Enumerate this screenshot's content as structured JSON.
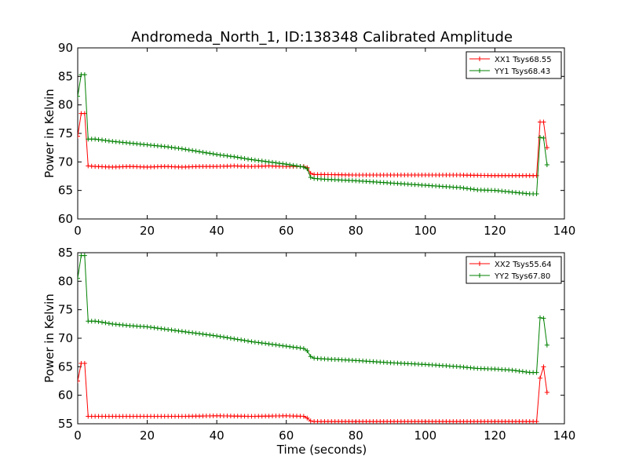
{
  "figure": {
    "title": "Andromeda_North_1, ID:138348 Calibrated Amplitude",
    "xlabel": "Time (seconds)"
  },
  "chart_data": [
    {
      "type": "line",
      "ylabel": "Power in Kelvin",
      "xlim": [
        0,
        140
      ],
      "ylim": [
        60,
        90
      ],
      "xticks": [
        0,
        20,
        40,
        60,
        80,
        100,
        120,
        140
      ],
      "yticks": [
        60,
        65,
        70,
        75,
        80,
        85,
        90
      ],
      "grid": false,
      "legend_position": "top-right",
      "series": [
        {
          "name": "XX1 Tsys68.55",
          "color": "#ff0000",
          "x": [
            0,
            1,
            2,
            3,
            5,
            10,
            15,
            20,
            25,
            30,
            35,
            40,
            45,
            50,
            55,
            60,
            65,
            66,
            67,
            68,
            70,
            80,
            90,
            100,
            110,
            120,
            125,
            130,
            132,
            133,
            134,
            135
          ],
          "y": [
            74.5,
            78.5,
            78.5,
            69.3,
            69.2,
            69.1,
            69.2,
            69.1,
            69.2,
            69.1,
            69.2,
            69.2,
            69.3,
            69.2,
            69.3,
            69.2,
            69.2,
            69.0,
            68.0,
            67.8,
            67.8,
            67.7,
            67.7,
            67.7,
            67.7,
            67.6,
            67.6,
            67.6,
            67.6,
            77.0,
            77.0,
            72.5
          ]
        },
        {
          "name": "YY1 Tsys68.43",
          "color": "#008000",
          "x": [
            0,
            1,
            2,
            3,
            5,
            10,
            15,
            20,
            25,
            30,
            35,
            40,
            45,
            50,
            55,
            60,
            65,
            66,
            67,
            68,
            70,
            80,
            90,
            100,
            110,
            115,
            120,
            125,
            130,
            132,
            133,
            134,
            135
          ],
          "y": [
            81.5,
            85.3,
            85.3,
            74.0,
            74.0,
            73.6,
            73.3,
            73.0,
            72.7,
            72.3,
            71.8,
            71.3,
            70.9,
            70.4,
            70.0,
            69.6,
            69.1,
            68.8,
            67.3,
            67.1,
            67.0,
            66.7,
            66.3,
            65.9,
            65.5,
            65.1,
            65.0,
            64.7,
            64.4,
            64.4,
            74.3,
            74.2,
            69.5
          ]
        }
      ]
    },
    {
      "type": "line",
      "ylabel": "Power in Kelvin",
      "xlim": [
        0,
        140
      ],
      "ylim": [
        55,
        85
      ],
      "xticks": [
        0,
        20,
        40,
        60,
        80,
        100,
        120,
        140
      ],
      "yticks": [
        55,
        60,
        65,
        70,
        75,
        80,
        85
      ],
      "grid": false,
      "legend_position": "top-right",
      "series": [
        {
          "name": "XX2 Tsys55.64",
          "color": "#ff0000",
          "x": [
            0,
            1,
            2,
            3,
            5,
            10,
            20,
            30,
            40,
            50,
            60,
            65,
            66,
            67,
            68,
            70,
            80,
            90,
            100,
            110,
            120,
            130,
            132,
            133,
            134,
            135
          ],
          "y": [
            62.5,
            65.6,
            65.6,
            56.3,
            56.3,
            56.3,
            56.3,
            56.3,
            56.4,
            56.3,
            56.4,
            56.3,
            56.0,
            55.5,
            55.4,
            55.4,
            55.4,
            55.4,
            55.4,
            55.4,
            55.4,
            55.4,
            55.4,
            63.0,
            65.0,
            60.5
          ]
        },
        {
          "name": "YY2 Tsys67.80",
          "color": "#008000",
          "x": [
            0,
            1,
            2,
            3,
            5,
            10,
            15,
            20,
            25,
            30,
            35,
            40,
            45,
            50,
            55,
            60,
            65,
            66,
            67,
            68,
            70,
            80,
            90,
            100,
            110,
            115,
            120,
            125,
            130,
            132,
            133,
            134,
            135
          ],
          "y": [
            80.5,
            84.5,
            84.5,
            73.0,
            73.0,
            72.5,
            72.2,
            72.0,
            71.6,
            71.2,
            70.8,
            70.4,
            69.9,
            69.4,
            69.0,
            68.6,
            68.2,
            67.8,
            66.8,
            66.5,
            66.4,
            66.1,
            65.7,
            65.4,
            65.0,
            64.7,
            64.6,
            64.4,
            64.0,
            64.0,
            73.6,
            73.5,
            68.8
          ]
        }
      ]
    }
  ]
}
